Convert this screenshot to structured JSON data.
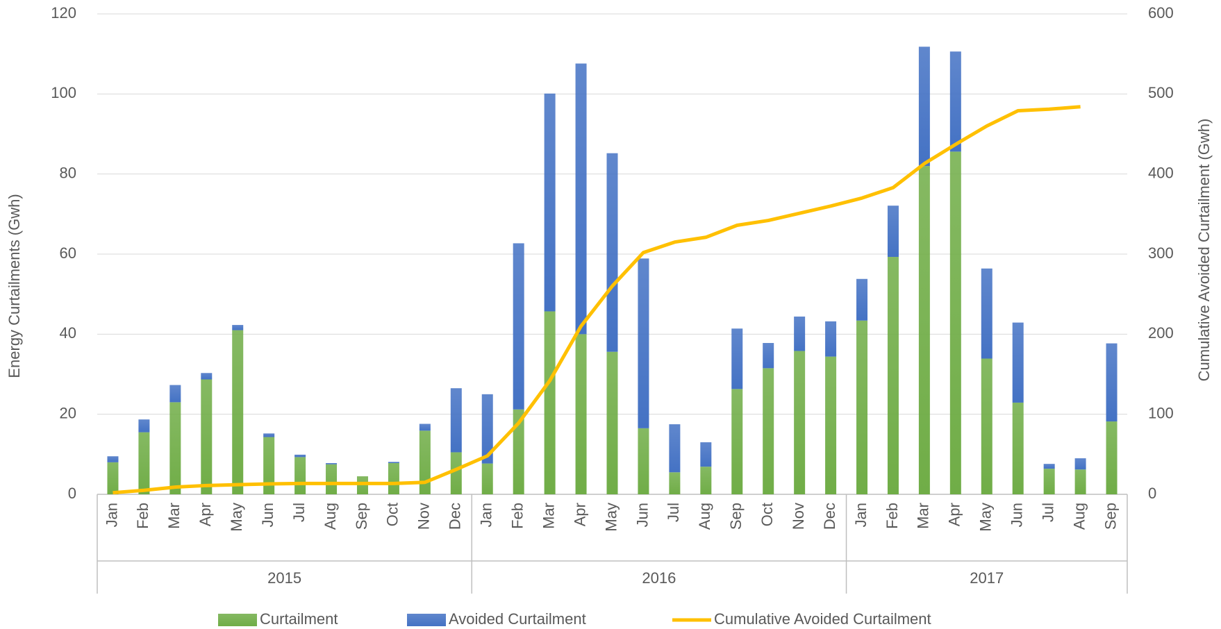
{
  "chart_data": {
    "type": "bar",
    "stacked": true,
    "ylabel": "Energy Curtailments  (Gwh)",
    "y2label": "Cumulative Avoided Curtailment (Gwh)",
    "groups": [
      {
        "label": "2015",
        "categories": [
          "Jan",
          "Feb",
          "Mar",
          "Apr",
          "May",
          "Jun",
          "Jul",
          "Aug",
          "Sep",
          "Oct",
          "Nov",
          "Dec"
        ]
      },
      {
        "label": "2016",
        "categories": [
          "Jan",
          "Feb",
          "Mar",
          "Apr",
          "May",
          "Jun",
          "Jul",
          "Aug",
          "Sep",
          "Oct",
          "Nov",
          "Dec"
        ]
      },
      {
        "label": "2017",
        "categories": [
          "Jan",
          "Feb",
          "Mar",
          "Apr",
          "May",
          "Jun",
          "Jul",
          "Aug",
          "Sep"
        ]
      }
    ],
    "series": [
      {
        "name": "Curtailment",
        "type": "bar",
        "color": "#70ad47",
        "values": [
          8,
          15.5,
          23,
          28.7,
          41,
          14.3,
          9.3,
          7.5,
          4.5,
          7.8,
          15.9,
          10.5,
          7.7,
          21.2,
          45.7,
          40,
          35.6,
          16.5,
          5.5,
          6.9,
          26.3,
          31.5,
          35.8,
          34.4,
          43.4,
          59.3,
          82,
          85.6,
          33.9,
          22.9,
          6.4,
          6.2,
          18.2
        ]
      },
      {
        "name": "Avoided Curtailment",
        "type": "bar",
        "color": "#4472c4",
        "values": [
          1.5,
          3.2,
          4.3,
          1.6,
          1.3,
          0.9,
          0.6,
          0.3,
          0,
          0.3,
          1.7,
          16,
          17.3,
          41.5,
          54.4,
          67.6,
          49.6,
          42.4,
          12,
          6.1,
          15.1,
          6.3,
          8.6,
          8.8,
          10.4,
          12.8,
          29.8,
          25,
          22.5,
          20,
          1.2,
          2.8,
          19.5
        ]
      },
      {
        "name": "Cumulative Avoided Curtailment",
        "type": "line",
        "axis": "y2",
        "color": "#ffc000",
        "values": [
          2,
          5,
          9,
          11,
          12,
          13,
          13.5,
          13.5,
          13.5,
          13.5,
          15,
          31,
          48,
          89,
          142,
          210,
          260,
          302,
          315,
          321,
          336,
          342,
          351,
          360,
          370,
          383,
          413,
          437,
          460,
          479,
          481,
          484,
          null
        ]
      }
    ],
    "ylim": [
      0,
      120
    ],
    "yticks": [
      0,
      20,
      40,
      60,
      80,
      100,
      120
    ],
    "y2lim": [
      0,
      600
    ],
    "y2ticks": [
      0,
      100,
      200,
      300,
      400,
      500,
      600
    ],
    "grid": true
  }
}
